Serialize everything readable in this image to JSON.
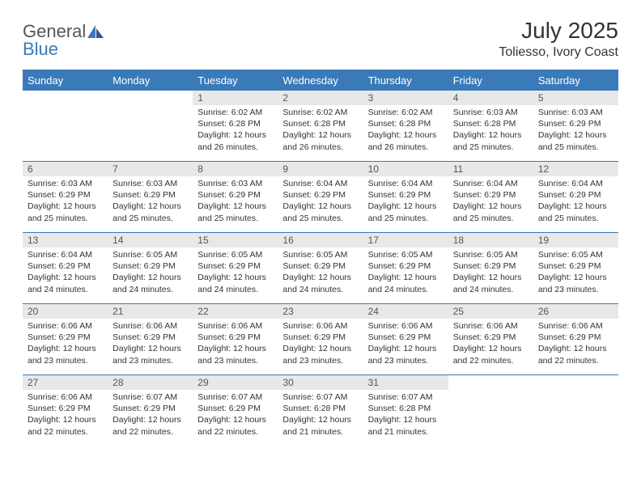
{
  "logo": {
    "text1": "General",
    "text2": "Blue"
  },
  "title": "July 2025",
  "location": "Toliesso, Ivory Coast",
  "colors": {
    "header_bg": "#3a7ab8",
    "header_text": "#ffffff",
    "daynum_bg": "#e8e8e8",
    "border": "#3a7ab8",
    "body_text": "#333333",
    "logo_gray": "#555555",
    "logo_blue": "#3a7ab8"
  },
  "weekdays": [
    "Sunday",
    "Monday",
    "Tuesday",
    "Wednesday",
    "Thursday",
    "Friday",
    "Saturday"
  ],
  "weeks": [
    [
      null,
      null,
      {
        "n": "1",
        "sr": "6:02 AM",
        "ss": "6:28 PM",
        "dl": "12 hours and 26 minutes."
      },
      {
        "n": "2",
        "sr": "6:02 AM",
        "ss": "6:28 PM",
        "dl": "12 hours and 26 minutes."
      },
      {
        "n": "3",
        "sr": "6:02 AM",
        "ss": "6:28 PM",
        "dl": "12 hours and 26 minutes."
      },
      {
        "n": "4",
        "sr": "6:03 AM",
        "ss": "6:28 PM",
        "dl": "12 hours and 25 minutes."
      },
      {
        "n": "5",
        "sr": "6:03 AM",
        "ss": "6:29 PM",
        "dl": "12 hours and 25 minutes."
      }
    ],
    [
      {
        "n": "6",
        "sr": "6:03 AM",
        "ss": "6:29 PM",
        "dl": "12 hours and 25 minutes."
      },
      {
        "n": "7",
        "sr": "6:03 AM",
        "ss": "6:29 PM",
        "dl": "12 hours and 25 minutes."
      },
      {
        "n": "8",
        "sr": "6:03 AM",
        "ss": "6:29 PM",
        "dl": "12 hours and 25 minutes."
      },
      {
        "n": "9",
        "sr": "6:04 AM",
        "ss": "6:29 PM",
        "dl": "12 hours and 25 minutes."
      },
      {
        "n": "10",
        "sr": "6:04 AM",
        "ss": "6:29 PM",
        "dl": "12 hours and 25 minutes."
      },
      {
        "n": "11",
        "sr": "6:04 AM",
        "ss": "6:29 PM",
        "dl": "12 hours and 25 minutes."
      },
      {
        "n": "12",
        "sr": "6:04 AM",
        "ss": "6:29 PM",
        "dl": "12 hours and 25 minutes."
      }
    ],
    [
      {
        "n": "13",
        "sr": "6:04 AM",
        "ss": "6:29 PM",
        "dl": "12 hours and 24 minutes."
      },
      {
        "n": "14",
        "sr": "6:05 AM",
        "ss": "6:29 PM",
        "dl": "12 hours and 24 minutes."
      },
      {
        "n": "15",
        "sr": "6:05 AM",
        "ss": "6:29 PM",
        "dl": "12 hours and 24 minutes."
      },
      {
        "n": "16",
        "sr": "6:05 AM",
        "ss": "6:29 PM",
        "dl": "12 hours and 24 minutes."
      },
      {
        "n": "17",
        "sr": "6:05 AM",
        "ss": "6:29 PM",
        "dl": "12 hours and 24 minutes."
      },
      {
        "n": "18",
        "sr": "6:05 AM",
        "ss": "6:29 PM",
        "dl": "12 hours and 24 minutes."
      },
      {
        "n": "19",
        "sr": "6:05 AM",
        "ss": "6:29 PM",
        "dl": "12 hours and 23 minutes."
      }
    ],
    [
      {
        "n": "20",
        "sr": "6:06 AM",
        "ss": "6:29 PM",
        "dl": "12 hours and 23 minutes."
      },
      {
        "n": "21",
        "sr": "6:06 AM",
        "ss": "6:29 PM",
        "dl": "12 hours and 23 minutes."
      },
      {
        "n": "22",
        "sr": "6:06 AM",
        "ss": "6:29 PM",
        "dl": "12 hours and 23 minutes."
      },
      {
        "n": "23",
        "sr": "6:06 AM",
        "ss": "6:29 PM",
        "dl": "12 hours and 23 minutes."
      },
      {
        "n": "24",
        "sr": "6:06 AM",
        "ss": "6:29 PM",
        "dl": "12 hours and 23 minutes."
      },
      {
        "n": "25",
        "sr": "6:06 AM",
        "ss": "6:29 PM",
        "dl": "12 hours and 22 minutes."
      },
      {
        "n": "26",
        "sr": "6:06 AM",
        "ss": "6:29 PM",
        "dl": "12 hours and 22 minutes."
      }
    ],
    [
      {
        "n": "27",
        "sr": "6:06 AM",
        "ss": "6:29 PM",
        "dl": "12 hours and 22 minutes."
      },
      {
        "n": "28",
        "sr": "6:07 AM",
        "ss": "6:29 PM",
        "dl": "12 hours and 22 minutes."
      },
      {
        "n": "29",
        "sr": "6:07 AM",
        "ss": "6:29 PM",
        "dl": "12 hours and 22 minutes."
      },
      {
        "n": "30",
        "sr": "6:07 AM",
        "ss": "6:28 PM",
        "dl": "12 hours and 21 minutes."
      },
      {
        "n": "31",
        "sr": "6:07 AM",
        "ss": "6:28 PM",
        "dl": "12 hours and 21 minutes."
      },
      null,
      null
    ]
  ],
  "labels": {
    "sunrise": "Sunrise:",
    "sunset": "Sunset:",
    "daylight": "Daylight:"
  }
}
